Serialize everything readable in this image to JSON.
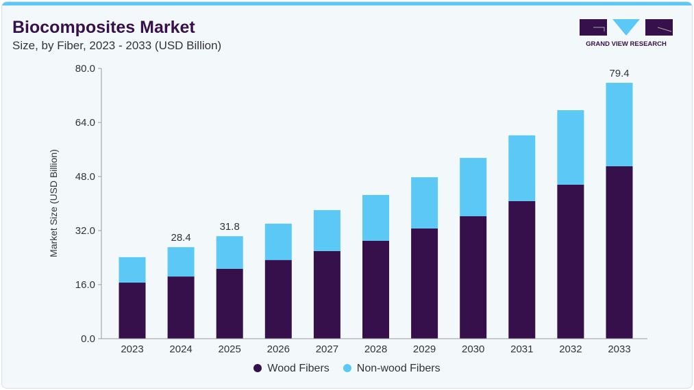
{
  "title": "Biocomposites Market",
  "subtitle": "Size, by Fiber, 2023 - 2033 (USD Billion)",
  "logo_text": "GRAND VIEW RESEARCH",
  "chart_data": {
    "type": "bar",
    "stacked": true,
    "title": "Biocomposites Market",
    "subtitle": "Size, by Fiber, 2023 - 2033 (USD Billion)",
    "xlabel": "",
    "ylabel": "Market Size (USD Billion)",
    "ylim": [
      0,
      80
    ],
    "yticks": [
      "0.0",
      "16.0",
      "32.0",
      "48.0",
      "64.0",
      "80.0"
    ],
    "grid": false,
    "legend_position": "bottom",
    "categories": [
      "2023",
      "2024",
      "2025",
      "2026",
      "2027",
      "2028",
      "2029",
      "2030",
      "2031",
      "2032",
      "2033"
    ],
    "series": [
      {
        "name": "Wood Fibers",
        "color": "#36104a",
        "values": [
          17.4,
          19.3,
          21.7,
          24.4,
          27.2,
          30.4,
          34.2,
          38.0,
          42.7,
          47.8,
          53.5
        ]
      },
      {
        "name": "Non-wood Fibers",
        "color": "#5bc8f5",
        "values": [
          7.9,
          9.1,
          10.1,
          11.3,
          12.7,
          14.2,
          15.9,
          18.1,
          20.4,
          23.1,
          25.9
        ]
      }
    ],
    "data_labels": {
      "2024": "28.4",
      "2025": "31.8",
      "2033": "79.4"
    }
  }
}
